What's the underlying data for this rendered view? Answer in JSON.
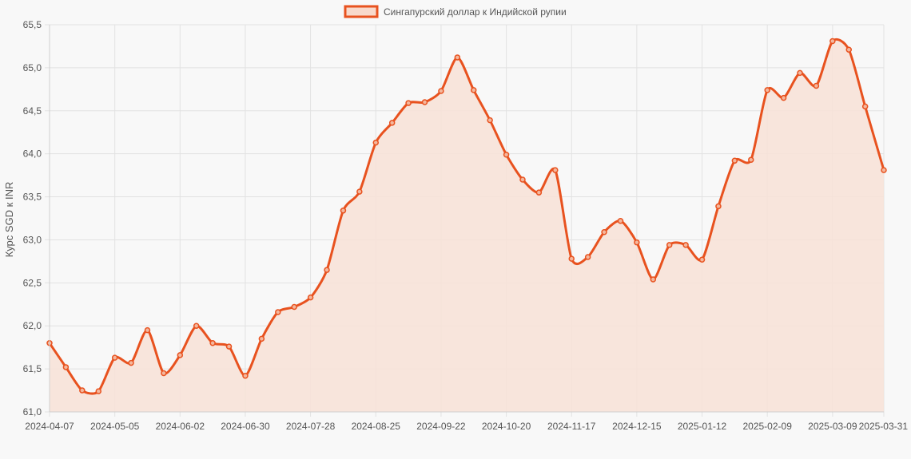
{
  "chart_data": {
    "type": "area",
    "legend": {
      "position": "top-center",
      "entries": [
        "Сингапурский доллар к Индийской рупии"
      ]
    },
    "ylabel": "Курс SGD к INR",
    "xlabel": "",
    "ylim": [
      61.0,
      65.5
    ],
    "yticks": [
      "61,0",
      "61,5",
      "62,0",
      "62,5",
      "63,0",
      "63,5",
      "64,0",
      "64,5",
      "65,0",
      "65,5"
    ],
    "xticks": [
      "2024-04-07",
      "2024-05-05",
      "2024-06-02",
      "2024-06-30",
      "2024-07-28",
      "2024-08-25",
      "2024-09-22",
      "2024-10-20",
      "2024-11-17",
      "2024-12-15",
      "2025-01-12",
      "2025-02-09",
      "2025-03-09",
      "2025-03-31"
    ],
    "grid": true,
    "colors": {
      "line": "#e8521f",
      "fill": "#f8e2d7",
      "grid": "#e2e2e2",
      "text": "#555555"
    },
    "series": [
      {
        "name": "Сингапурский доллар к Индийской рупии",
        "x": [
          "2024-04-07",
          "2024-04-14",
          "2024-04-21",
          "2024-04-28",
          "2024-05-05",
          "2024-05-12",
          "2024-05-19",
          "2024-05-26",
          "2024-06-02",
          "2024-06-09",
          "2024-06-16",
          "2024-06-23",
          "2024-06-30",
          "2024-07-07",
          "2024-07-14",
          "2024-07-21",
          "2024-07-28",
          "2024-08-04",
          "2024-08-11",
          "2024-08-18",
          "2024-08-25",
          "2024-09-01",
          "2024-09-08",
          "2024-09-15",
          "2024-09-22",
          "2024-09-29",
          "2024-10-06",
          "2024-10-13",
          "2024-10-20",
          "2024-10-27",
          "2024-11-03",
          "2024-11-10",
          "2024-11-17",
          "2024-11-24",
          "2024-12-01",
          "2024-12-08",
          "2024-12-15",
          "2024-12-22",
          "2024-12-29",
          "2025-01-05",
          "2025-01-12",
          "2025-01-19",
          "2025-01-26",
          "2025-02-02",
          "2025-02-09",
          "2025-02-16",
          "2025-02-23",
          "2025-03-02",
          "2025-03-09",
          "2025-03-16",
          "2025-03-23",
          "2025-03-31"
        ],
        "values": [
          61.8,
          61.52,
          61.25,
          61.24,
          61.63,
          61.57,
          61.95,
          61.45,
          61.66,
          62.0,
          61.8,
          61.76,
          61.42,
          61.85,
          62.16,
          62.22,
          62.33,
          62.65,
          63.34,
          63.56,
          64.13,
          64.36,
          64.59,
          64.6,
          64.73,
          65.12,
          64.74,
          64.39,
          63.99,
          63.7,
          63.55,
          63.81,
          62.78,
          62.8,
          63.09,
          63.22,
          62.97,
          62.54,
          62.94,
          62.94,
          62.77,
          63.39,
          63.92,
          63.93,
          64.74,
          64.65,
          64.94,
          64.79,
          65.31,
          65.21,
          64.55,
          63.81
        ]
      }
    ]
  }
}
